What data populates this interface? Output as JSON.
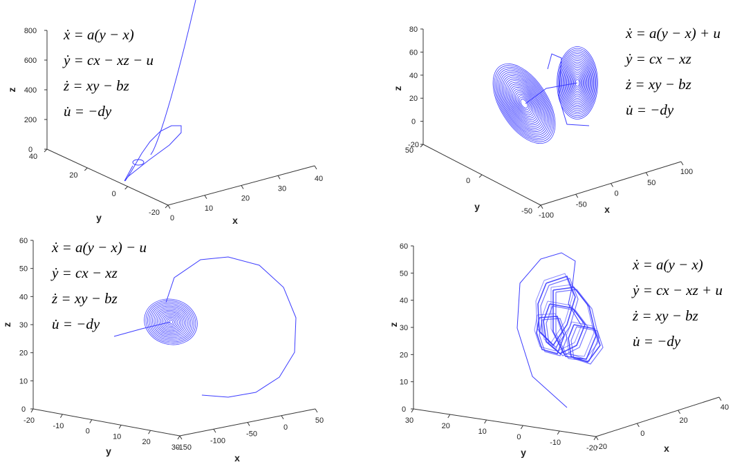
{
  "panels": [
    {
      "equations": [
        "ẋ = a(y − x)",
        "ẏ = cx − xz − u",
        "ż = xy − bz",
        "u̇ = −dy"
      ],
      "labels": {
        "x": "x",
        "y": "y",
        "z": "z"
      },
      "z_ticks": [
        "0",
        "200",
        "400",
        "600",
        "800"
      ],
      "y_ticks": [
        "40",
        "20",
        "0",
        "-20"
      ],
      "x_ticks": [
        "0",
        "10",
        "20",
        "30",
        "40"
      ]
    },
    {
      "equations": [
        "ẋ = a(y − x) + u",
        "ẏ = cx − xz",
        "ż = xy − bz",
        "u̇ = −dy"
      ],
      "labels": {
        "x": "x",
        "y": "y",
        "z": "z"
      },
      "z_ticks": [
        "-20",
        "0",
        "20",
        "40",
        "60",
        "80"
      ],
      "y_ticks": [
        "50",
        "0",
        "-50"
      ],
      "x_ticks": [
        "-100",
        "-50",
        "0",
        "50",
        "100"
      ]
    },
    {
      "equations": [
        "ẋ = a(y − x) − u",
        "ẏ = cx − xz",
        "ż = xy − bz",
        "u̇ = −dy"
      ],
      "labels": {
        "x": "x",
        "y": "y",
        "z": "z"
      },
      "z_ticks": [
        "0",
        "10",
        "20",
        "30",
        "40",
        "50",
        "60"
      ],
      "y_ticks": [
        "-20",
        "-10",
        "0",
        "10",
        "20",
        "30"
      ],
      "x_ticks": [
        "-150",
        "-100",
        "-50",
        "0",
        "50"
      ]
    },
    {
      "equations": [
        "ẋ = a(y − x)",
        "ẏ = cx − xz + u",
        "ż = xy − bz",
        "u̇ = −dy"
      ],
      "labels": {
        "x": "x",
        "y": "y",
        "z": "z"
      },
      "z_ticks": [
        "0",
        "10",
        "20",
        "30",
        "40",
        "50",
        "60"
      ],
      "y_ticks": [
        "30",
        "20",
        "10",
        "0",
        "-10",
        "-20"
      ],
      "x_ticks": [
        "-20",
        "0",
        "20",
        "40"
      ]
    }
  ],
  "chart_data": [
    {
      "type": "line",
      "title": "",
      "xlabel": "x",
      "ylabel": "y",
      "zlabel": "z",
      "xlim": [
        0,
        40
      ],
      "ylim": [
        -20,
        40
      ],
      "zlim": [
        0,
        800
      ],
      "grid": false,
      "series": [
        {
          "values": [
            [
              5,
              5,
              5
            ],
            [
              18,
              8,
              160
            ],
            [
              30,
              10,
              230
            ],
            [
              35,
              15,
              900
            ]
          ]
        }
      ]
    },
    {
      "type": "line",
      "title": "",
      "xlabel": "x",
      "ylabel": "y",
      "zlabel": "z",
      "xlim": [
        -100,
        100
      ],
      "ylim": [
        -50,
        50
      ],
      "zlim": [
        -20,
        80
      ],
      "grid": false,
      "series": [
        {
          "values": [
            [
              -15,
              -15,
              15
            ],
            [
              15,
              15,
              30
            ]
          ]
        }
      ]
    },
    {
      "type": "line",
      "title": "",
      "xlabel": "x",
      "ylabel": "y",
      "zlabel": "z",
      "xlim": [
        -150,
        50
      ],
      "ylim": [
        -20,
        30
      ],
      "zlim": [
        0,
        60
      ],
      "grid": false,
      "series": [
        {
          "values": [
            [
              -60,
              0,
              30
            ],
            [
              0,
              20,
              55
            ],
            [
              -40,
              15,
              5
            ]
          ]
        }
      ]
    },
    {
      "type": "line",
      "title": "",
      "xlabel": "x",
      "ylabel": "y",
      "zlabel": "z",
      "xlim": [
        -20,
        40
      ],
      "ylim": [
        -20,
        30
      ],
      "zlim": [
        0,
        60
      ],
      "grid": false,
      "series": [
        {
          "values": [
            [
              0,
              0,
              30
            ],
            [
              10,
              -5,
              25
            ],
            [
              -5,
              5,
              35
            ]
          ]
        }
      ]
    }
  ]
}
